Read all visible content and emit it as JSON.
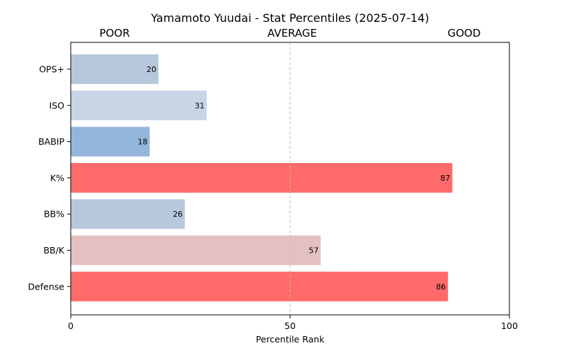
{
  "chart_data": {
    "type": "bar",
    "orientation": "horizontal",
    "title": "Yamamoto Yuudai - Stat Percentiles (2025-07-14)",
    "band_labels": [
      "POOR",
      "AVERAGE",
      "GOOD"
    ],
    "xlabel": "Percentile Rank",
    "ylabel": "",
    "xlim": [
      0,
      100
    ],
    "xticks": [
      0,
      50,
      100
    ],
    "reference_line": 50,
    "categories": [
      "OPS+",
      "ISO",
      "BABIP",
      "K%",
      "BB%",
      "BB/K",
      "Defense"
    ],
    "values": [
      20,
      31,
      18,
      87,
      26,
      57,
      86
    ],
    "colors": [
      "#b7c8dc",
      "#c8d5e6",
      "#94b6dc",
      "#ff6b6b",
      "#b7c8dc",
      "#e4c1c1",
      "#ff6b6b"
    ],
    "grid": false,
    "legend": "none"
  }
}
